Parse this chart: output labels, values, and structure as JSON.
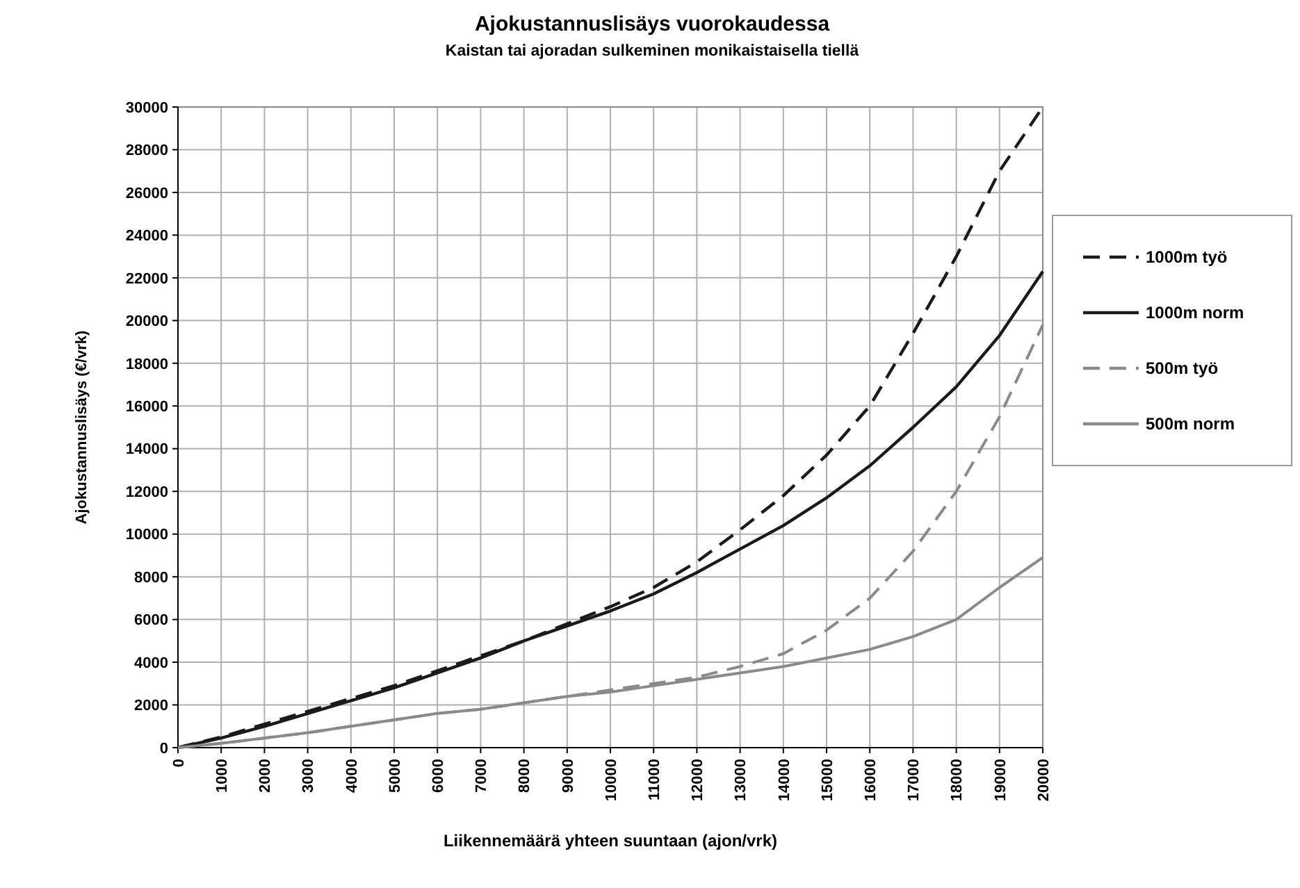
{
  "chart_data": {
    "type": "line",
    "title": "Ajokustannuslisäys vuorokaudessa",
    "subtitle": "Kaistan tai ajoradan sulkeminen monikaistaisella tiellä",
    "xlabel": "Liikennemäärä yhteen suuntaan (ajon/vrk)",
    "ylabel": "Ajokustannuslisäys (€/vrk)",
    "x": [
      0,
      1000,
      2000,
      3000,
      4000,
      5000,
      6000,
      7000,
      8000,
      9000,
      10000,
      11000,
      12000,
      13000,
      14000,
      15000,
      16000,
      17000,
      18000,
      19000,
      20000
    ],
    "series": [
      {
        "name": "1000m työ",
        "color": "#1a1a1a",
        "line_style": "dashed",
        "values": [
          0,
          500,
          1100,
          1700,
          2300,
          2900,
          3600,
          4300,
          5000,
          5800,
          6600,
          7500,
          8700,
          10200,
          11800,
          13700,
          16000,
          19400,
          23000,
          27000,
          30000
        ]
      },
      {
        "name": "1000m norm",
        "color": "#1a1a1a",
        "line_style": "solid",
        "values": [
          0,
          450,
          1000,
          1600,
          2200,
          2800,
          3500,
          4200,
          5000,
          5700,
          6400,
          7200,
          8200,
          9300,
          10400,
          11700,
          13200,
          15000,
          16900,
          19300,
          22300
        ]
      },
      {
        "name": "500m työ",
        "color": "#8a8a8a",
        "line_style": "dashed",
        "values": [
          0,
          200,
          450,
          700,
          1000,
          1300,
          1600,
          1800,
          2100,
          2400,
          2700,
          3000,
          3300,
          3800,
          4400,
          5500,
          7000,
          9200,
          12000,
          15500,
          19800
        ]
      },
      {
        "name": "500m norm",
        "color": "#8a8a8a",
        "line_style": "solid",
        "values": [
          0,
          200,
          450,
          700,
          1000,
          1300,
          1600,
          1800,
          2100,
          2400,
          2600,
          2900,
          3200,
          3500,
          3800,
          4200,
          4600,
          5200,
          6000,
          7500,
          8900
        ]
      }
    ],
    "xlim": [
      0,
      20000
    ],
    "xticks": [
      0,
      1000,
      2000,
      3000,
      4000,
      5000,
      6000,
      7000,
      8000,
      9000,
      10000,
      11000,
      12000,
      13000,
      14000,
      15000,
      16000,
      17000,
      18000,
      19000,
      20000
    ],
    "ylim": [
      0,
      30000
    ],
    "yticks": [
      0,
      2000,
      4000,
      6000,
      8000,
      10000,
      12000,
      14000,
      16000,
      18000,
      20000,
      22000,
      24000,
      26000,
      28000,
      30000
    ],
    "grid": true,
    "legend": "right",
    "marker": "none"
  }
}
